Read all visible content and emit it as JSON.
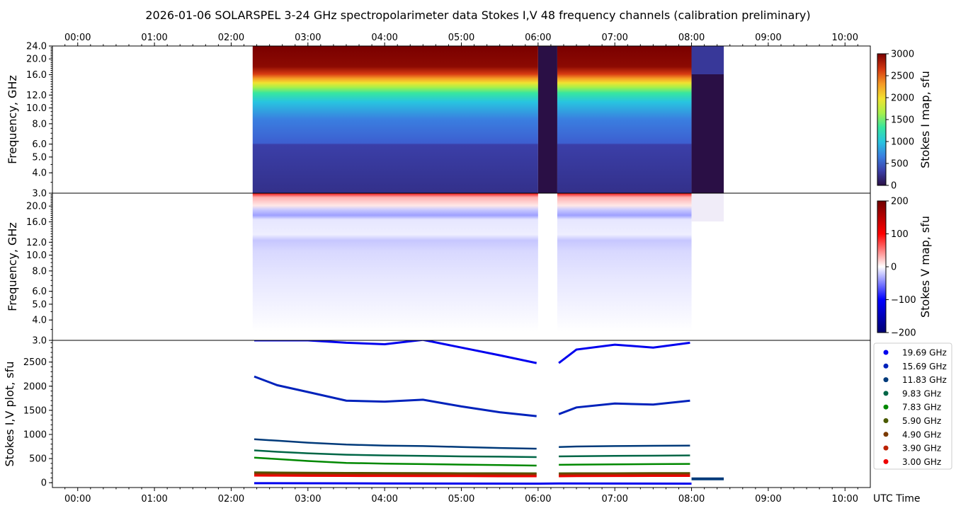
{
  "title": "2026-01-06  SOLARSPEL  3-24 GHz spectropolarimeter data   Stokes I,V   48 frequency channels   (calibration preliminary)",
  "colors": {
    "stokes_i_cmap": [
      "#2a0f45",
      "#3b3fa8",
      "#3a7ee0",
      "#28c4e0",
      "#36e6a0",
      "#a8f04a",
      "#f2e230",
      "#f59a25",
      "#d63a12",
      "#7a0000"
    ],
    "stokes_v_cmap": [
      "#000070",
      "#0000ff",
      "#ffffff",
      "#ff0000",
      "#700000"
    ],
    "gap_color": "#2a0f45"
  },
  "chart_data": [
    {
      "type": "heatmap",
      "name": "Stokes I spectrogram",
      "ylabel": "Frequency, GHz",
      "ylim": [
        3.0,
        24.0
      ],
      "yscale": "log",
      "yticks": [
        "24.0",
        "20.0",
        "16.0",
        "12.0",
        "10.0",
        "8.0",
        "6.0",
        "5.0",
        "4.0",
        "3.0"
      ],
      "x_range_hours": [
        -0.33,
        10.33
      ],
      "xticks": [
        "00:00",
        "01:00",
        "02:00",
        "03:00",
        "04:00",
        "05:00",
        "06:00",
        "07:00",
        "08:00",
        "09:00",
        "10:00"
      ],
      "data_start_hours": 2.28,
      "data_end_hours": 8.42,
      "gaps_hours": [
        [
          6.0,
          6.25
        ],
        [
          8.0,
          8.42
        ]
      ],
      "colorbar": {
        "label": "Stokes I map, sfu",
        "range": [
          0,
          3000
        ],
        "ticks": [
          "3000",
          "2500",
          "2000",
          "1500",
          "1000",
          "500",
          "0"
        ]
      }
    },
    {
      "type": "heatmap",
      "name": "Stokes V spectrogram",
      "ylabel": "Frequency, GHz",
      "ylim": [
        3.0,
        24.0
      ],
      "yscale": "log",
      "yticks": [
        "20.0",
        "16.0",
        "12.0",
        "10.0",
        "8.0",
        "6.0",
        "5.0",
        "4.0",
        "3.0"
      ],
      "data_start_hours": 2.28,
      "data_end_hours": 8.42,
      "colorbar": {
        "label": "Stokes V map, sfu",
        "range": [
          -200,
          200
        ],
        "ticks": [
          "200",
          "100",
          "0",
          "−100",
          "−200"
        ]
      }
    },
    {
      "type": "line",
      "name": "Stokes I,V time profiles",
      "ylabel": "Stokes I,V plot, sfu",
      "xlabel": "UTC Time",
      "ylim": [
        -100,
        2950
      ],
      "yticks": [
        "2500",
        "2000",
        "1500",
        "1000",
        "500",
        "0"
      ],
      "legend_position": "right",
      "x_hours": [
        2.3,
        2.6,
        3.0,
        3.5,
        4.0,
        4.5,
        5.0,
        5.5,
        5.98,
        6.27,
        6.5,
        7.0,
        7.5,
        7.98
      ],
      "series": [
        {
          "name": "19.69 GHz",
          "color": "#0000ee",
          "values": [
            2950,
            2950,
            2950,
            2900,
            2870,
            2960,
            2800,
            2640,
            2480,
            2480,
            2760,
            2860,
            2800,
            2900
          ]
        },
        {
          "name": "15.69 GHz",
          "color": "#0022bb",
          "values": [
            2200,
            2020,
            1880,
            1700,
            1680,
            1720,
            1580,
            1460,
            1380,
            1420,
            1560,
            1640,
            1620,
            1700
          ]
        },
        {
          "name": "11.83 GHz",
          "color": "#003a7a",
          "values": [
            900,
            870,
            830,
            790,
            770,
            760,
            740,
            720,
            705,
            740,
            750,
            760,
            765,
            770
          ]
        },
        {
          "name": "9.83 GHz",
          "color": "#006646",
          "values": [
            670,
            640,
            610,
            580,
            565,
            555,
            545,
            540,
            530,
            545,
            550,
            555,
            560,
            565
          ]
        },
        {
          "name": "7.83 GHz",
          "color": "#008800",
          "values": [
            520,
            490,
            450,
            410,
            395,
            385,
            375,
            365,
            355,
            370,
            375,
            380,
            385,
            390
          ]
        },
        {
          "name": "5.90 GHz",
          "color": "#4a5a00",
          "values": [
            215,
            212,
            208,
            205,
            202,
            200,
            198,
            196,
            195,
            195,
            196,
            198,
            200,
            200
          ]
        },
        {
          "name": "4.90 GHz",
          "color": "#7a3a00",
          "values": [
            190,
            188,
            185,
            182,
            180,
            180,
            178,
            176,
            175,
            176,
            178,
            180,
            182,
            182
          ]
        },
        {
          "name": "3.90 GHz",
          "color": "#bb2200",
          "values": [
            165,
            163,
            160,
            158,
            156,
            155,
            154,
            152,
            150,
            152,
            154,
            156,
            158,
            158
          ]
        },
        {
          "name": "3.00 GHz",
          "color": "#ee0000",
          "values": [
            145,
            143,
            140,
            138,
            136,
            135,
            134,
            132,
            130,
            132,
            134,
            136,
            138,
            138
          ]
        }
      ],
      "stokes_v_hours": [
        2.3,
        4.0,
        6.0,
        6.27,
        8.0
      ],
      "stokes_v_values": [
        -10,
        -15,
        -20,
        -15,
        -20
      ]
    }
  ]
}
